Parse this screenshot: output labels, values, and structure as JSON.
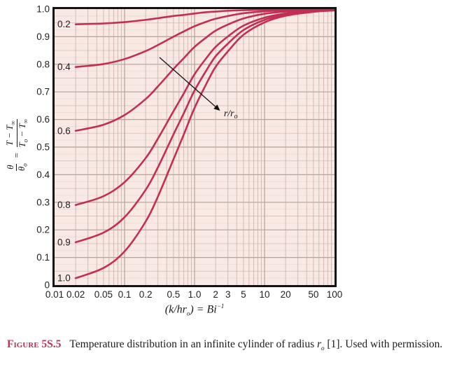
{
  "figure": {
    "caption_label": "Figure 5S.5",
    "caption_body_1": "Temperature distribution in an infinite cylinder of radius ",
    "caption_var": "r",
    "caption_var_sub": "o",
    "caption_body_2": " [1]. Used with permission.",
    "accent_color": "#bf3156"
  },
  "y_axis_label": {
    "lhs_num": "θ",
    "lhs_den": "θ",
    "lhs_den_sub": "o",
    "equals": "=",
    "rhs_num_a": "T − T",
    "rhs_num_sub": "∞",
    "rhs_den_a": "T",
    "rhs_den_a_sub": "o",
    "rhs_den_b": " − T",
    "rhs_den_b_sub": "∞"
  },
  "x_axis_label": {
    "part1": "(k/hr",
    "sub1": "o",
    "part2": ") = Bi",
    "sup1": "−1"
  },
  "chart_data": {
    "type": "line",
    "x_scale": "log",
    "x_range": [
      0.01,
      100
    ],
    "y_range": [
      0,
      1.0
    ],
    "grid": "on",
    "title": "",
    "xlabel": "(k/hr_o) = Bi^-1",
    "ylabel": "theta/theta_o = (T - T_inf)/(T_o - T_inf)",
    "x_ticks": [
      0.01,
      0.02,
      0.05,
      0.1,
      0.2,
      0.5,
      1,
      2,
      3,
      5,
      10,
      20,
      50,
      100
    ],
    "x_tick_labels": [
      "0.01",
      "0.02",
      "0.05",
      "0.1",
      "0.2",
      "0.5",
      "1.0",
      "2",
      "3",
      "5",
      "10",
      "20",
      "50",
      "100"
    ],
    "y_ticks": [
      0,
      0.1,
      0.2,
      0.3,
      0.4,
      0.5,
      0.6,
      0.7,
      0.8,
      0.9,
      1.0
    ],
    "y_tick_labels": [
      "0",
      "0.1",
      "0.2",
      "0.3",
      "0.4",
      "0.5",
      "0.6",
      "0.7",
      "0.8",
      "0.9",
      "1.0"
    ],
    "colors": {
      "curve": "#c42e55",
      "plot_bg": "#f8e9e5",
      "grid_minor": "#ead7d2",
      "grid_mid": "#dcc2bc",
      "grid_major": "#b5a09b",
      "grid_v_minor": "#c9afaa",
      "frame": "#131313",
      "tick_text": "#1f1f1f",
      "annotation": "#111111"
    },
    "x_values": [
      0.02,
      0.05,
      0.1,
      0.2,
      0.3,
      0.5,
      0.7,
      1,
      1.5,
      2,
      3,
      5,
      10,
      20,
      50,
      100
    ],
    "series": [
      {
        "label": "0.2",
        "y": [
          0.945,
          0.948,
          0.953,
          0.961,
          0.967,
          0.975,
          0.979,
          0.984,
          0.989,
          0.991,
          0.994,
          0.996,
          0.998,
          0.999,
          0.9995,
          0.9998
        ]
      },
      {
        "label": "0.4",
        "y": [
          0.79,
          0.801,
          0.819,
          0.848,
          0.87,
          0.9,
          0.919,
          0.938,
          0.955,
          0.965,
          0.975,
          0.985,
          0.992,
          0.996,
          0.998,
          0.999
        ]
      },
      {
        "label": "0.6",
        "y": [
          0.559,
          0.581,
          0.616,
          0.674,
          0.72,
          0.783,
          0.822,
          0.863,
          0.899,
          0.922,
          0.944,
          0.966,
          0.983,
          0.991,
          0.996,
          0.998
        ]
      },
      {
        "label": "0.8",
        "y": [
          0.29,
          0.322,
          0.373,
          0.46,
          0.531,
          0.63,
          0.694,
          0.764,
          0.825,
          0.863,
          0.901,
          0.94,
          0.969,
          0.984,
          0.994,
          0.997
        ]
      },
      {
        "label": "0.9",
        "y": [
          0.155,
          0.19,
          0.246,
          0.345,
          0.427,
          0.546,
          0.622,
          0.705,
          0.781,
          0.829,
          0.875,
          0.924,
          0.961,
          0.98,
          0.992,
          0.996
        ]
      },
      {
        "label": "1.0",
        "y": [
          0.025,
          0.062,
          0.122,
          0.23,
          0.321,
          0.456,
          0.545,
          0.642,
          0.733,
          0.791,
          0.847,
          0.907,
          0.952,
          0.976,
          0.99,
          0.995
        ]
      }
    ],
    "annotation": {
      "label_main": "r/r",
      "label_sub": "o",
      "arrow_from": [
        0.316,
        0.825
      ],
      "arrow_to": [
        2.24,
        0.635
      ],
      "label_at": [
        2.62,
        0.612
      ]
    }
  }
}
